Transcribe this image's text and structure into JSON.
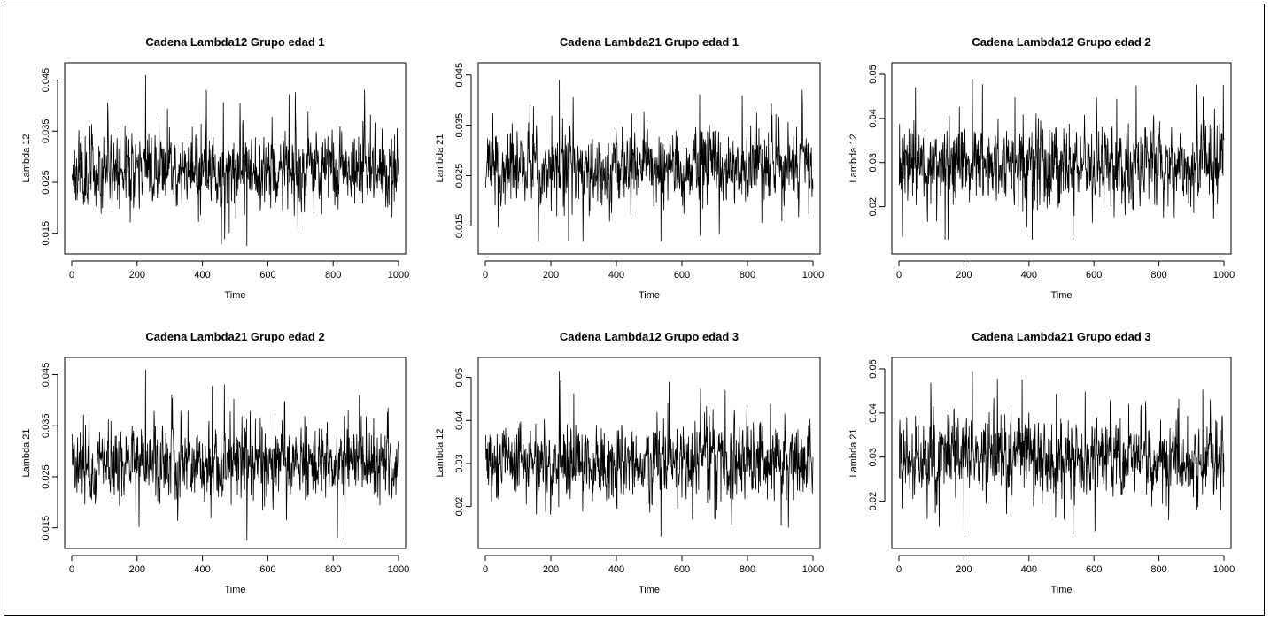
{
  "chart_data": [
    {
      "type": "line",
      "title": "Cadena Lambda12 Grupo edad 1",
      "xlabel": "Time",
      "ylabel": "Lambda 12",
      "xlim": [
        0,
        1000
      ],
      "ylim": [
        0.012,
        0.047
      ],
      "xticks": [
        0,
        200,
        400,
        600,
        800,
        1000
      ],
      "yticks": [
        0.015,
        0.025,
        0.035,
        0.045
      ],
      "ytick_labels": [
        "0.015",
        "0.025",
        "0.035",
        "0.045"
      ],
      "series": [
        {
          "n": 1000,
          "mean": 0.0275,
          "spread": 0.0035,
          "min": 0.0125,
          "max": 0.046,
          "seed": 11
        }
      ]
    },
    {
      "type": "line",
      "title": "Cadena Lambda21 Grupo edad 1",
      "xlabel": "Time",
      "ylabel": "Lambda 21",
      "xlim": [
        0,
        1000
      ],
      "ylim": [
        0.0105,
        0.046
      ],
      "xticks": [
        0,
        200,
        400,
        600,
        800,
        1000
      ],
      "yticks": [
        0.015,
        0.025,
        0.035,
        0.045
      ],
      "ytick_labels": [
        "0.015",
        "0.025",
        "0.035",
        "0.045"
      ],
      "series": [
        {
          "n": 1000,
          "mean": 0.0265,
          "spread": 0.0035,
          "min": 0.012,
          "max": 0.044,
          "seed": 23
        }
      ]
    },
    {
      "type": "line",
      "title": "Cadena Lambda12 Grupo edad 2",
      "xlabel": "Time",
      "ylabel": "Lambda 12",
      "xlim": [
        0,
        1000
      ],
      "ylim": [
        0.0105,
        0.051
      ],
      "xticks": [
        0,
        200,
        400,
        600,
        800,
        1000
      ],
      "yticks": [
        0.02,
        0.03,
        0.04,
        0.05
      ],
      "ytick_labels": [
        "0.02",
        "0.03",
        "0.04",
        "0.05"
      ],
      "series": [
        {
          "n": 1000,
          "mean": 0.0295,
          "spread": 0.0042,
          "min": 0.0125,
          "max": 0.049,
          "seed": 37
        }
      ]
    },
    {
      "type": "line",
      "title": "Cadena Lambda21 Grupo edad 2",
      "xlabel": "Time",
      "ylabel": "Lambda 21",
      "xlim": [
        0,
        1000
      ],
      "ylim": [
        0.012,
        0.047
      ],
      "xticks": [
        0,
        200,
        400,
        600,
        800,
        1000
      ],
      "yticks": [
        0.015,
        0.025,
        0.035,
        0.045
      ],
      "ytick_labels": [
        "0.015",
        "0.025",
        "0.035",
        "0.045"
      ],
      "series": [
        {
          "n": 1000,
          "mean": 0.0275,
          "spread": 0.0035,
          "min": 0.0125,
          "max": 0.046,
          "seed": 41
        }
      ]
    },
    {
      "type": "line",
      "title": "Cadena Lambda12 Grupo edad 3",
      "xlabel": "Time",
      "ylabel": "Lambda 12",
      "xlim": [
        0,
        1000
      ],
      "ylim": [
        0.0115,
        0.053
      ],
      "xticks": [
        0,
        200,
        400,
        600,
        800,
        1000
      ],
      "yticks": [
        0.02,
        0.03,
        0.04,
        0.05
      ],
      "ytick_labels": [
        "0.02",
        "0.03",
        "0.04",
        "0.05"
      ],
      "series": [
        {
          "n": 1000,
          "mean": 0.0305,
          "spread": 0.0043,
          "min": 0.013,
          "max": 0.0515,
          "seed": 53
        }
      ]
    },
    {
      "type": "line",
      "title": "Cadena Lambda21 Grupo edad 3",
      "xlabel": "Time",
      "ylabel": "Lambda 21",
      "xlim": [
        0,
        1000
      ],
      "ylim": [
        0.0105,
        0.051
      ],
      "xticks": [
        0,
        200,
        400,
        600,
        800,
        1000
      ],
      "yticks": [
        0.02,
        0.03,
        0.04,
        0.05
      ],
      "ytick_labels": [
        "0.02",
        "0.03",
        "0.04",
        "0.05"
      ],
      "series": [
        {
          "n": 1000,
          "mean": 0.0295,
          "spread": 0.0042,
          "min": 0.0125,
          "max": 0.0495,
          "seed": 67
        }
      ]
    }
  ]
}
